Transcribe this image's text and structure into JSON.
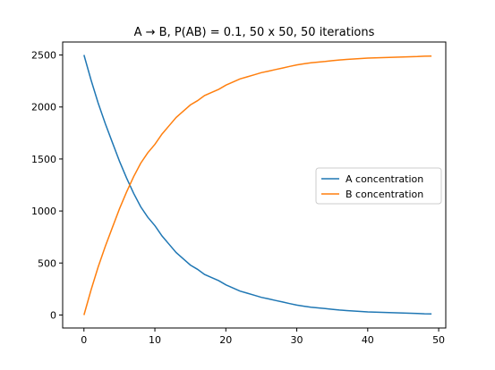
{
  "chart_data": {
    "type": "line",
    "title": "A → B, P(AB) = 0.1, 50 x 50, 50 iterations",
    "xlabel": "",
    "ylabel": "",
    "xlim": [
      -3,
      51
    ],
    "ylim": [
      -125,
      2625
    ],
    "xticks": [
      0,
      10,
      20,
      30,
      40,
      50
    ],
    "yticks": [
      0,
      500,
      1000,
      1500,
      2000,
      2500
    ],
    "grid": false,
    "legend_position": "center-right",
    "x": [
      0,
      1,
      2,
      3,
      4,
      5,
      6,
      7,
      8,
      9,
      10,
      11,
      12,
      13,
      14,
      15,
      16,
      17,
      18,
      19,
      20,
      21,
      22,
      23,
      24,
      25,
      26,
      27,
      28,
      29,
      30,
      31,
      32,
      33,
      34,
      35,
      36,
      37,
      38,
      39,
      40,
      41,
      42,
      43,
      44,
      45,
      46,
      47,
      48,
      49
    ],
    "series": [
      {
        "name": "A concentration",
        "color": "#1f77b4",
        "values": [
          2500,
          2260,
          2040,
          1840,
          1660,
          1480,
          1320,
          1170,
          1040,
          940,
          860,
          760,
          680,
          600,
          540,
          480,
          440,
          390,
          360,
          330,
          290,
          260,
          230,
          210,
          190,
          170,
          155,
          140,
          125,
          110,
          95,
          85,
          75,
          68,
          62,
          55,
          48,
          43,
          38,
          34,
          30,
          28,
          25,
          23,
          21,
          19,
          17,
          15,
          12,
          10
        ]
      },
      {
        "name": "B concentration",
        "color": "#ff7f0e",
        "values": [
          0,
          240,
          460,
          660,
          840,
          1020,
          1180,
          1330,
          1460,
          1560,
          1640,
          1740,
          1820,
          1900,
          1960,
          2020,
          2060,
          2110,
          2140,
          2170,
          2210,
          2240,
          2270,
          2290,
          2310,
          2330,
          2345,
          2360,
          2375,
          2390,
          2405,
          2415,
          2425,
          2432,
          2438,
          2445,
          2452,
          2457,
          2462,
          2466,
          2470,
          2472,
          2475,
          2477,
          2479,
          2481,
          2483,
          2485,
          2488,
          2490
        ]
      }
    ]
  }
}
